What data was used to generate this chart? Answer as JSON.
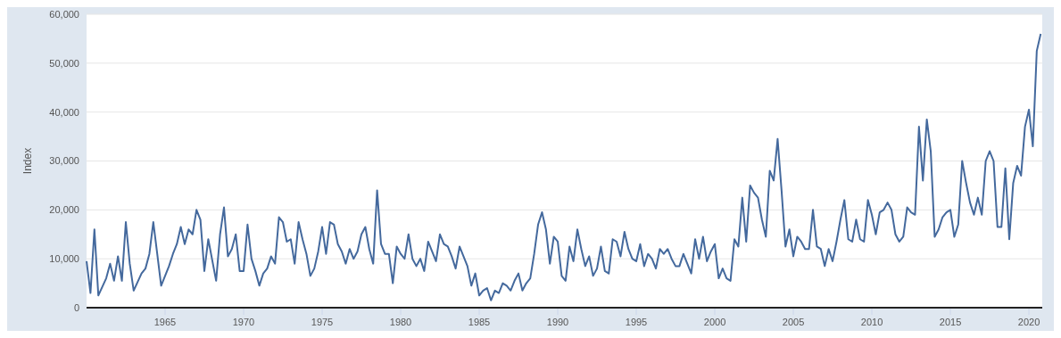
{
  "chart_data": {
    "type": "line",
    "ylabel": "Index",
    "grid": "y",
    "xlim": [
      1960,
      2020.85
    ],
    "ylim": [
      0,
      60000
    ],
    "xticks": [
      1965,
      1970,
      1975,
      1980,
      1985,
      1990,
      1995,
      2000,
      2005,
      2010,
      2015,
      2020
    ],
    "yticks": [
      0,
      {
        "value": 10000,
        "label": "10,000"
      },
      {
        "value": 20000,
        "label": "20,000"
      },
      {
        "value": 30000,
        "label": "30,000"
      },
      {
        "value": 40000,
        "label": "40,000"
      },
      {
        "value": 50000,
        "label": "50,000"
      },
      {
        "value": 60000,
        "label": "60,000"
      }
    ],
    "x": [
      1960.0,
      1960.25,
      1960.5,
      1960.75,
      1961.25,
      1961.5,
      1961.75,
      1962.0,
      1962.25,
      1962.5,
      1962.75,
      1963.0,
      1963.5,
      1963.75,
      1964.0,
      1964.25,
      1964.5,
      1964.75,
      1965.25,
      1965.5,
      1965.75,
      1966.0,
      1966.25,
      1966.5,
      1966.75,
      1967.0,
      1967.25,
      1967.5,
      1967.75,
      1968.25,
      1968.5,
      1968.75,
      1969.0,
      1969.25,
      1969.5,
      1969.75,
      1970.0,
      1970.25,
      1970.5,
      1970.75,
      1971.0,
      1971.25,
      1971.5,
      1971.75,
      1972.0,
      1972.25,
      1972.5,
      1972.75,
      1973.0,
      1973.25,
      1973.5,
      1973.75,
      1974.0,
      1974.25,
      1974.5,
      1974.75,
      1975.0,
      1975.25,
      1975.5,
      1975.75,
      1976.0,
      1976.25,
      1976.5,
      1976.75,
      1977.0,
      1977.25,
      1977.5,
      1977.75,
      1978.0,
      1978.25,
      1978.5,
      1978.75,
      1979.0,
      1979.25,
      1979.5,
      1979.75,
      1980.0,
      1980.25,
      1980.5,
      1980.75,
      1981.0,
      1981.25,
      1981.5,
      1981.75,
      1982.0,
      1982.25,
      1982.5,
      1982.75,
      1983.0,
      1983.25,
      1983.5,
      1983.75,
      1984.0,
      1984.25,
      1984.5,
      1984.75,
      1985.0,
      1985.25,
      1985.5,
      1985.75,
      1986.0,
      1986.25,
      1986.5,
      1986.75,
      1987.0,
      1987.25,
      1987.5,
      1987.75,
      1988.0,
      1988.25,
      1988.5,
      1988.75,
      1989.0,
      1989.25,
      1989.5,
      1989.75,
      1990.0,
      1990.25,
      1990.5,
      1990.75,
      1991.0,
      1991.25,
      1991.5,
      1991.75,
      1992.0,
      1992.25,
      1992.5,
      1992.75,
      1993.0,
      1993.25,
      1993.5,
      1993.75,
      1994.0,
      1994.25,
      1994.5,
      1994.75,
      1995.0,
      1995.25,
      1995.5,
      1995.75,
      1996.0,
      1996.25,
      1996.5,
      1996.75,
      1997.0,
      1997.25,
      1997.5,
      1997.75,
      1998.0,
      1998.25,
      1998.5,
      1998.75,
      1999.0,
      1999.25,
      1999.5,
      1999.75,
      2000.0,
      2000.25,
      2000.5,
      2000.75,
      2001.0,
      2001.25,
      2001.5,
      2001.75,
      2002.0,
      2002.25,
      2002.5,
      2002.75,
      2003.0,
      2003.25,
      2003.5,
      2003.75,
      2004.0,
      2004.25,
      2004.5,
      2004.75,
      2005.0,
      2005.25,
      2005.5,
      2005.75,
      2006.0,
      2006.25,
      2006.5,
      2006.75,
      2007.0,
      2007.25,
      2007.5,
      2007.75,
      2008.0,
      2008.25,
      2008.5,
      2008.75,
      2009.0,
      2009.25,
      2009.5,
      2009.75,
      2010.0,
      2010.25,
      2010.5,
      2010.75,
      2011.0,
      2011.25,
      2011.5,
      2011.75,
      2012.0,
      2012.25,
      2012.5,
      2012.75,
      2013.0,
      2013.25,
      2013.5,
      2013.75,
      2014.0,
      2014.25,
      2014.5,
      2014.75,
      2015.0,
      2015.25,
      2015.5,
      2015.75,
      2016.0,
      2016.25,
      2016.5,
      2016.75,
      2017.0,
      2017.25,
      2017.5,
      2017.75,
      2018.0,
      2018.25,
      2018.5,
      2018.75,
      2019.0,
      2019.25,
      2019.5,
      2019.75,
      2020.0,
      2020.25,
      2020.5,
      2020.75
    ],
    "series": [
      {
        "color": "#44699d",
        "values": [
          9500,
          3000,
          16000,
          2500,
          6000,
          9000,
          5500,
          10500,
          5500,
          17500,
          9000,
          3500,
          7000,
          8000,
          11000,
          17500,
          11000,
          4500,
          8500,
          11000,
          13000,
          16500,
          13000,
          16000,
          15000,
          20000,
          18000,
          7500,
          14000,
          5500,
          15000,
          20500,
          10500,
          12000,
          15000,
          7500,
          7500,
          17000,
          10000,
          7500,
          4500,
          7000,
          8000,
          10500,
          9000,
          18500,
          17500,
          13500,
          14000,
          9000,
          17500,
          14000,
          11000,
          6500,
          8000,
          11500,
          16500,
          11000,
          17500,
          17000,
          13000,
          11500,
          9000,
          12000,
          10000,
          11500,
          15000,
          16500,
          12000,
          9000,
          24000,
          13000,
          11000,
          11000,
          5000,
          12500,
          11000,
          10000,
          15000,
          10000,
          8500,
          10000,
          7500,
          13500,
          11500,
          9500,
          15000,
          13000,
          12500,
          10500,
          8000,
          12500,
          10500,
          8500,
          4500,
          7000,
          2500,
          3500,
          4000,
          1500,
          3500,
          3000,
          5000,
          4500,
          3500,
          5500,
          7000,
          3500,
          5000,
          6000,
          11000,
          17000,
          19500,
          16000,
          9000,
          14500,
          13500,
          6500,
          5500,
          12500,
          9500,
          16000,
          12000,
          8500,
          10500,
          6500,
          8000,
          12500,
          7500,
          7000,
          14000,
          13500,
          10500,
          15500,
          12000,
          10000,
          9500,
          13000,
          8500,
          11000,
          10000,
          8000,
          12000,
          11000,
          12000,
          10000,
          8500,
          8500,
          11000,
          9000,
          7000,
          14000,
          10000,
          14500,
          9500,
          11500,
          13000,
          6000,
          8000,
          6000,
          5500,
          14000,
          12500,
          22500,
          13500,
          25000,
          23500,
          22500,
          18000,
          14500,
          28000,
          26000,
          34500,
          24000,
          12500,
          16000,
          10500,
          14500,
          13500,
          12000,
          12000,
          20000,
          12500,
          12000,
          8500,
          12000,
          9500,
          13500,
          18000,
          22000,
          14000,
          13500,
          18000,
          14000,
          13500,
          22000,
          19000,
          15000,
          19500,
          20000,
          21500,
          20000,
          15000,
          13500,
          14500,
          20500,
          19500,
          19000,
          37000,
          26000,
          38500,
          32000,
          14500,
          16000,
          18500,
          19500,
          20000,
          14500,
          17000,
          30000,
          25500,
          21500,
          19000,
          22500,
          19000,
          30000,
          32000,
          30000,
          16500,
          16500,
          28500,
          14000,
          25500,
          29000,
          27000,
          37000,
          40500,
          33000,
          52500,
          56000
        ]
      }
    ]
  }
}
